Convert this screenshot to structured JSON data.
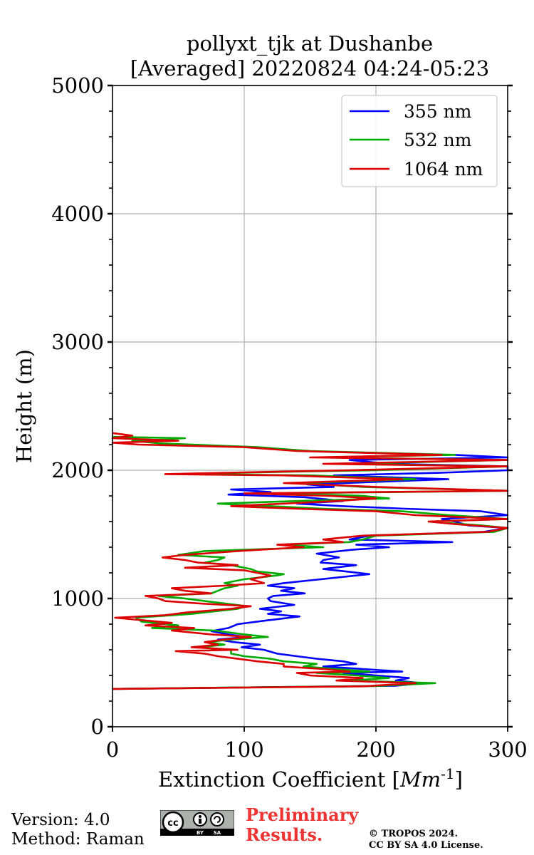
{
  "chart_data": {
    "type": "line",
    "title": "pollyxt_tjk at Dushanbe",
    "subtitle": "[Averaged] 20220824 04:24-05:23",
    "xlabel": "Extinction Coefficient [",
    "xlabel_unit": "Mm",
    "xlabel_exp": "-1",
    "xlabel_close": "]",
    "ylabel": "Height (m)",
    "xlim": [
      0,
      300
    ],
    "ylim": [
      0,
      5000
    ],
    "xticks": [
      0,
      100,
      200,
      300
    ],
    "xtick_labels": [
      "0",
      "100",
      "200",
      "300"
    ],
    "yticks": [
      0,
      1000,
      2000,
      3000,
      4000,
      5000
    ],
    "ytick_labels": [
      "0",
      "1000",
      "2000",
      "3000",
      "4000",
      "5000"
    ],
    "grid": true,
    "legend_position": "upper-right",
    "series": [
      {
        "name": "355 nm",
        "color": "#0000ff",
        "points": [
          [
            0,
            295
          ],
          [
            215,
            320
          ],
          [
            235,
            340
          ],
          [
            215,
            360
          ],
          [
            225,
            380
          ],
          [
            200,
            400
          ],
          [
            175,
            420
          ],
          [
            220,
            430
          ],
          [
            190,
            450
          ],
          [
            160,
            470
          ],
          [
            185,
            490
          ],
          [
            175,
            510
          ],
          [
            155,
            530
          ],
          [
            140,
            550
          ],
          [
            125,
            570
          ],
          [
            115,
            600
          ],
          [
            98,
            620
          ],
          [
            112,
            640
          ],
          [
            92,
            660
          ],
          [
            80,
            680
          ],
          [
            102,
            700
          ],
          [
            88,
            720
          ],
          [
            75,
            745
          ],
          [
            88,
            770
          ],
          [
            95,
            800
          ],
          [
            118,
            830
          ],
          [
            142,
            860
          ],
          [
            118,
            880
          ],
          [
            128,
            900
          ],
          [
            112,
            920
          ],
          [
            138,
            950
          ],
          [
            120,
            980
          ],
          [
            118,
            1000
          ],
          [
            122,
            1020
          ],
          [
            146,
            1040
          ],
          [
            128,
            1060
          ],
          [
            138,
            1080
          ],
          [
            118,
            1100
          ],
          [
            130,
            1120
          ],
          [
            158,
            1150
          ],
          [
            195,
            1190
          ],
          [
            178,
            1210
          ],
          [
            160,
            1230
          ],
          [
            185,
            1260
          ],
          [
            158,
            1280
          ],
          [
            160,
            1300
          ],
          [
            172,
            1320
          ],
          [
            155,
            1350
          ],
          [
            182,
            1380
          ],
          [
            210,
            1400
          ],
          [
            185,
            1420
          ],
          [
            258,
            1440
          ],
          [
            180,
            1460
          ],
          [
            195,
            1490
          ],
          [
            282,
            1520
          ],
          [
            300,
            1550
          ],
          [
            270,
            1570
          ],
          [
            260,
            1600
          ],
          [
            250,
            1620
          ],
          [
            300,
            1650
          ],
          [
            280,
            1680
          ],
          [
            222,
            1700
          ],
          [
            175,
            1720
          ],
          [
            140,
            1740
          ],
          [
            175,
            1760
          ],
          [
            146,
            1790
          ],
          [
            88,
            1810
          ],
          [
            120,
            1830
          ],
          [
            90,
            1850
          ],
          [
            168,
            1870
          ],
          [
            148,
            1890
          ],
          [
            202,
            1910
          ],
          [
            255,
            1930
          ],
          [
            168,
            1960
          ],
          [
            248,
            1980
          ],
          [
            300,
            2000
          ],
          [
            300,
            2030
          ],
          [
            210,
            2050
          ],
          [
            180,
            2080
          ],
          [
            300,
            2100
          ],
          [
            260,
            2120
          ]
        ]
      },
      {
        "name": "532 nm",
        "color": "#00aa00",
        "points": [
          [
            0,
            295
          ],
          [
            200,
            318
          ],
          [
            245,
            340
          ],
          [
            180,
            360
          ],
          [
            210,
            380
          ],
          [
            185,
            400
          ],
          [
            155,
            420
          ],
          [
            195,
            430
          ],
          [
            170,
            450
          ],
          [
            145,
            470
          ],
          [
            155,
            490
          ],
          [
            130,
            510
          ],
          [
            120,
            530
          ],
          [
            100,
            550
          ],
          [
            90,
            570
          ],
          [
            90,
            600
          ],
          [
            65,
            620
          ],
          [
            85,
            640
          ],
          [
            72,
            660
          ],
          [
            90,
            680
          ],
          [
            118,
            700
          ],
          [
            100,
            720
          ],
          [
            78,
            750
          ],
          [
            30,
            770
          ],
          [
            50,
            790
          ],
          [
            22,
            820
          ],
          [
            18,
            850
          ],
          [
            60,
            880
          ],
          [
            95,
            920
          ],
          [
            102,
            940
          ],
          [
            70,
            980
          ],
          [
            55,
            1000
          ],
          [
            35,
            1020
          ],
          [
            75,
            1040
          ],
          [
            80,
            1060
          ],
          [
            85,
            1080
          ],
          [
            95,
            1100
          ],
          [
            85,
            1120
          ],
          [
            100,
            1150
          ],
          [
            125,
            1180
          ],
          [
            130,
            1190
          ],
          [
            110,
            1210
          ],
          [
            105,
            1230
          ],
          [
            90,
            1260
          ],
          [
            70,
            1280
          ],
          [
            80,
            1300
          ],
          [
            85,
            1320
          ],
          [
            50,
            1340
          ],
          [
            70,
            1370
          ],
          [
            160,
            1400
          ],
          [
            130,
            1420
          ],
          [
            180,
            1440
          ],
          [
            190,
            1460
          ],
          [
            200,
            1490
          ],
          [
            290,
            1520
          ],
          [
            300,
            1550
          ],
          [
            280,
            1570
          ],
          [
            240,
            1600
          ],
          [
            300,
            1620
          ],
          [
            255,
            1650
          ],
          [
            220,
            1680
          ],
          [
            160,
            1700
          ],
          [
            120,
            1720
          ],
          [
            80,
            1740
          ],
          [
            140,
            1760
          ],
          [
            210,
            1780
          ],
          [
            190,
            1800
          ],
          [
            125,
            1820
          ],
          [
            300,
            1840
          ],
          [
            190,
            1870
          ],
          [
            140,
            1900
          ],
          [
            230,
            1930
          ],
          [
            150,
            1960
          ],
          [
            50,
            1970
          ],
          [
            140,
            1990
          ],
          [
            200,
            2000
          ],
          [
            300,
            2030
          ],
          [
            180,
            2050
          ],
          [
            300,
            2080
          ],
          [
            160,
            2100
          ],
          [
            260,
            2120
          ],
          [
            150,
            2150
          ],
          [
            110,
            2180
          ],
          [
            35,
            2210
          ],
          [
            15,
            2230
          ],
          [
            55,
            2250
          ],
          [
            0,
            2260
          ]
        ]
      },
      {
        "name": "1064 nm",
        "color": "#dd0000",
        "points": [
          [
            0,
            295
          ],
          [
            190,
            315
          ],
          [
            230,
            340
          ],
          [
            170,
            360
          ],
          [
            190,
            380
          ],
          [
            150,
            400
          ],
          [
            140,
            420
          ],
          [
            180,
            430
          ],
          [
            160,
            450
          ],
          [
            130,
            470
          ],
          [
            130,
            490
          ],
          [
            110,
            510
          ],
          [
            95,
            530
          ],
          [
            80,
            550
          ],
          [
            70,
            570
          ],
          [
            48,
            590
          ],
          [
            95,
            600
          ],
          [
            60,
            620
          ],
          [
            80,
            640
          ],
          [
            70,
            660
          ],
          [
            85,
            680
          ],
          [
            105,
            700
          ],
          [
            75,
            720
          ],
          [
            45,
            750
          ],
          [
            62,
            770
          ],
          [
            25,
            790
          ],
          [
            45,
            810
          ],
          [
            2,
            850
          ],
          [
            40,
            870
          ],
          [
            55,
            890
          ],
          [
            90,
            920
          ],
          [
            105,
            940
          ],
          [
            68,
            960
          ],
          [
            40,
            980
          ],
          [
            35,
            1000
          ],
          [
            25,
            1020
          ],
          [
            75,
            1040
          ],
          [
            55,
            1060
          ],
          [
            45,
            1080
          ],
          [
            85,
            1100
          ],
          [
            115,
            1120
          ],
          [
            105,
            1150
          ],
          [
            120,
            1180
          ],
          [
            110,
            1200
          ],
          [
            100,
            1220
          ],
          [
            55,
            1240
          ],
          [
            95,
            1260
          ],
          [
            65,
            1280
          ],
          [
            55,
            1300
          ],
          [
            38,
            1320
          ],
          [
            55,
            1340
          ],
          [
            95,
            1370
          ],
          [
            145,
            1400
          ],
          [
            125,
            1420
          ],
          [
            175,
            1440
          ],
          [
            160,
            1460
          ],
          [
            190,
            1490
          ],
          [
            285,
            1520
          ],
          [
            300,
            1550
          ],
          [
            260,
            1580
          ],
          [
            240,
            1600
          ],
          [
            300,
            1620
          ],
          [
            230,
            1650
          ],
          [
            200,
            1680
          ],
          [
            140,
            1700
          ],
          [
            90,
            1720
          ],
          [
            130,
            1740
          ],
          [
            170,
            1760
          ],
          [
            200,
            1780
          ],
          [
            165,
            1800
          ],
          [
            100,
            1820
          ],
          [
            300,
            1840
          ],
          [
            200,
            1870
          ],
          [
            130,
            1900
          ],
          [
            220,
            1930
          ],
          [
            130,
            1960
          ],
          [
            40,
            1970
          ],
          [
            130,
            1990
          ],
          [
            180,
            2000
          ],
          [
            300,
            2030
          ],
          [
            160,
            2050
          ],
          [
            300,
            2080
          ],
          [
            150,
            2100
          ],
          [
            250,
            2120
          ],
          [
            140,
            2150
          ],
          [
            100,
            2180
          ],
          [
            20,
            2200
          ],
          [
            0,
            2215
          ],
          [
            50,
            2230
          ],
          [
            0,
            2250
          ],
          [
            15,
            2270
          ],
          [
            0,
            2290
          ]
        ]
      }
    ]
  },
  "footer": {
    "version": "Version: 4.0",
    "method": "Method: Raman",
    "preliminary_line1": "Preliminary",
    "preliminary_line2": "Results.",
    "copyright_line1": "© TROPOS 2024.",
    "copyright_line2": "CC BY SA 4.0 License.",
    "license_badge_cc": "cc",
    "license_badge_by": "BY",
    "license_badge_sa": "SA"
  }
}
